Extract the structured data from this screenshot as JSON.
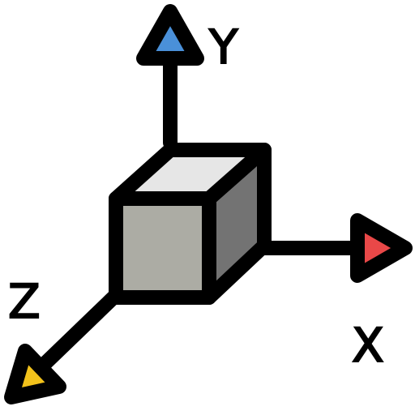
{
  "icon": {
    "name": "3d-axis-cube",
    "labels": {
      "x": "X",
      "y": "Y",
      "z": "Z"
    },
    "colors": {
      "outline": "#000000",
      "x_arrow": "#e94848",
      "y_arrow": "#4a90d9",
      "z_arrow": "#f2c21b",
      "cube_top": "#e6e6e6",
      "cube_front": "#acaca4",
      "cube_side": "#737373",
      "background": "#ffffff"
    }
  }
}
